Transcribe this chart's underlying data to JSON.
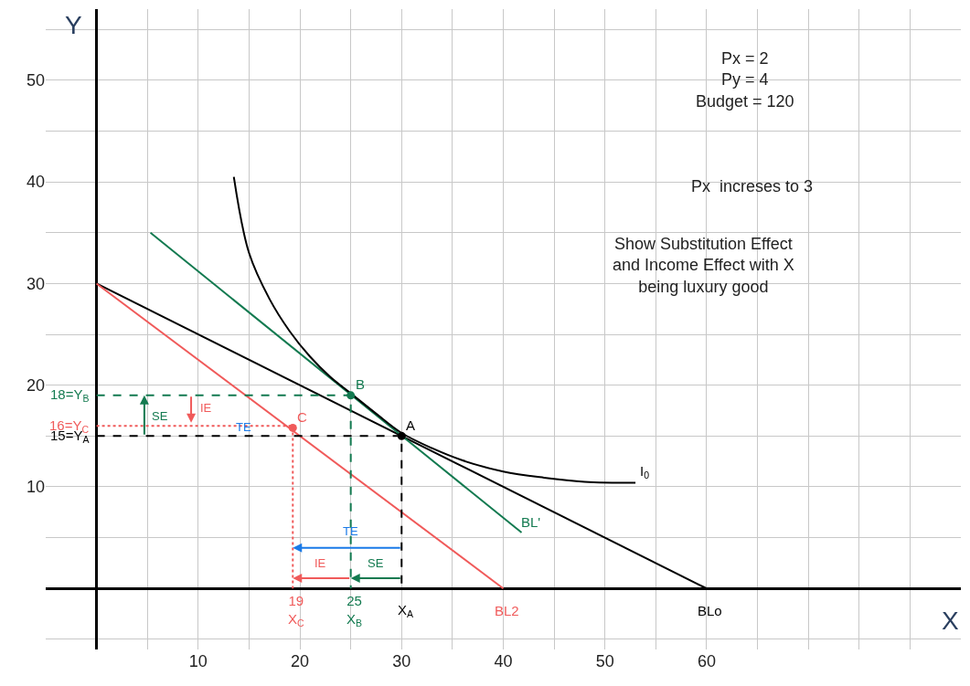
{
  "chart_data": {
    "type": "line",
    "xlabel": "X",
    "ylabel": "Y",
    "xlim": [
      -5,
      85
    ],
    "ylim": [
      -6,
      57
    ],
    "xticks": [
      {
        "value": 0,
        "label": null
      },
      {
        "value": 5,
        "label": null
      },
      10,
      {
        "value": 15,
        "label": null
      },
      20,
      {
        "value": 25,
        "label": null
      },
      30,
      {
        "value": 35,
        "label": null
      },
      40,
      {
        "value": 45,
        "label": null
      },
      50,
      {
        "value": 55,
        "label": null
      },
      60,
      {
        "value": 65,
        "label": null
      },
      {
        "value": 70,
        "label": null
      },
      {
        "value": 75,
        "label": null
      },
      {
        "value": 80,
        "label": null
      }
    ],
    "yticks": [
      {
        "value": -5,
        "label": null
      },
      {
        "value": 0,
        "label": null
      },
      {
        "value": 5,
        "label": null
      },
      10,
      {
        "value": 15,
        "label": null
      },
      20,
      {
        "value": 25,
        "label": null
      },
      30,
      {
        "value": 35,
        "label": null
      },
      40,
      {
        "value": 45,
        "label": null
      },
      50,
      {
        "value": 55,
        "label": null
      }
    ],
    "grid": true,
    "series": [
      {
        "color": "#000000",
        "x": [
          0,
          60
        ],
        "values": [
          30,
          0
        ]
      },
      {
        "color": "#f05a5a",
        "x": [
          0,
          40
        ],
        "values": [
          30,
          0
        ]
      },
      {
        "color": "#137a50",
        "x": [
          5.3,
          41.8
        ],
        "values": [
          35,
          5.5
        ]
      },
      {
        "color": "#000000",
        "x": [
          13.5,
          15,
          17,
          19,
          21,
          23,
          25,
          27.5,
          30,
          33,
          36,
          40,
          44,
          48,
          53
        ],
        "values": [
          40.5,
          33,
          28.5,
          25.3,
          22.8,
          20.8,
          19.2,
          17.2,
          15.3,
          13.8,
          12.6,
          11.5,
          10.9,
          10.5,
          10.4
        ]
      },
      {
        "type": "scatter",
        "marker": "circle",
        "color": "#000000",
        "x": [
          30
        ],
        "values": [
          15
        ]
      },
      {
        "type": "scatter",
        "marker": "circle",
        "color": "#137a50",
        "x": [
          25
        ],
        "values": [
          19
        ]
      },
      {
        "type": "scatter",
        "marker": "circle",
        "color": "#f05a5a",
        "x": [
          19.3
        ],
        "values": [
          15.8
        ]
      },
      {
        "color": "#000000",
        "line_style": "dashed",
        "x": [
          0,
          30,
          30
        ],
        "values": [
          15,
          15,
          0
        ]
      },
      {
        "color": "#137a50",
        "line_style": "dashed",
        "x": [
          0,
          25,
          25
        ],
        "values": [
          19,
          19,
          0
        ]
      },
      {
        "color": "#f05a5a",
        "line_style": "dotted",
        "x": [
          0,
          19.3,
          19.3
        ],
        "values": [
          16,
          16,
          0
        ]
      }
    ],
    "annotations": [
      "Px = 2\nPy = 4\nBudget = 120",
      "Px  increses to 3",
      "Show Substitution Effect\nand Income Effect with X\nbeing luxury good",
      {
        "text": "A",
        "x": 30,
        "y": 15
      },
      {
        "text": "B",
        "x": 25,
        "y": 19
      },
      {
        "text": "C",
        "x": 19.3,
        "y": 15.8
      },
      {
        "text": "BL'",
        "x": 41.8,
        "y": 5.5
      },
      {
        "text": "BL2",
        "x": 40,
        "y": 0
      },
      {
        "text": "BLo",
        "x": 60,
        "y": 0
      },
      {
        "text": "I$_{0}$",
        "x": 53,
        "y": 10.4
      },
      {
        "text": "18=Y$_{B}$",
        "x": 0,
        "y": 19
      },
      {
        "text": "16=Y$_{C}$",
        "x": 0,
        "y": 16
      },
      {
        "text": "15=Y$_{A}$",
        "x": 0,
        "y": 15
      },
      "SE",
      "IE",
      "TE",
      "SE",
      "IE",
      "TE",
      {
        "text": "19\nX$_{C}$",
        "x": 19.3,
        "y": 0
      },
      {
        "text": "25\nX$_{B}$",
        "x": 25,
        "y": 0
      },
      {
        "text": "X$_{A}$",
        "x": 30,
        "y": 0
      }
    ]
  }
}
